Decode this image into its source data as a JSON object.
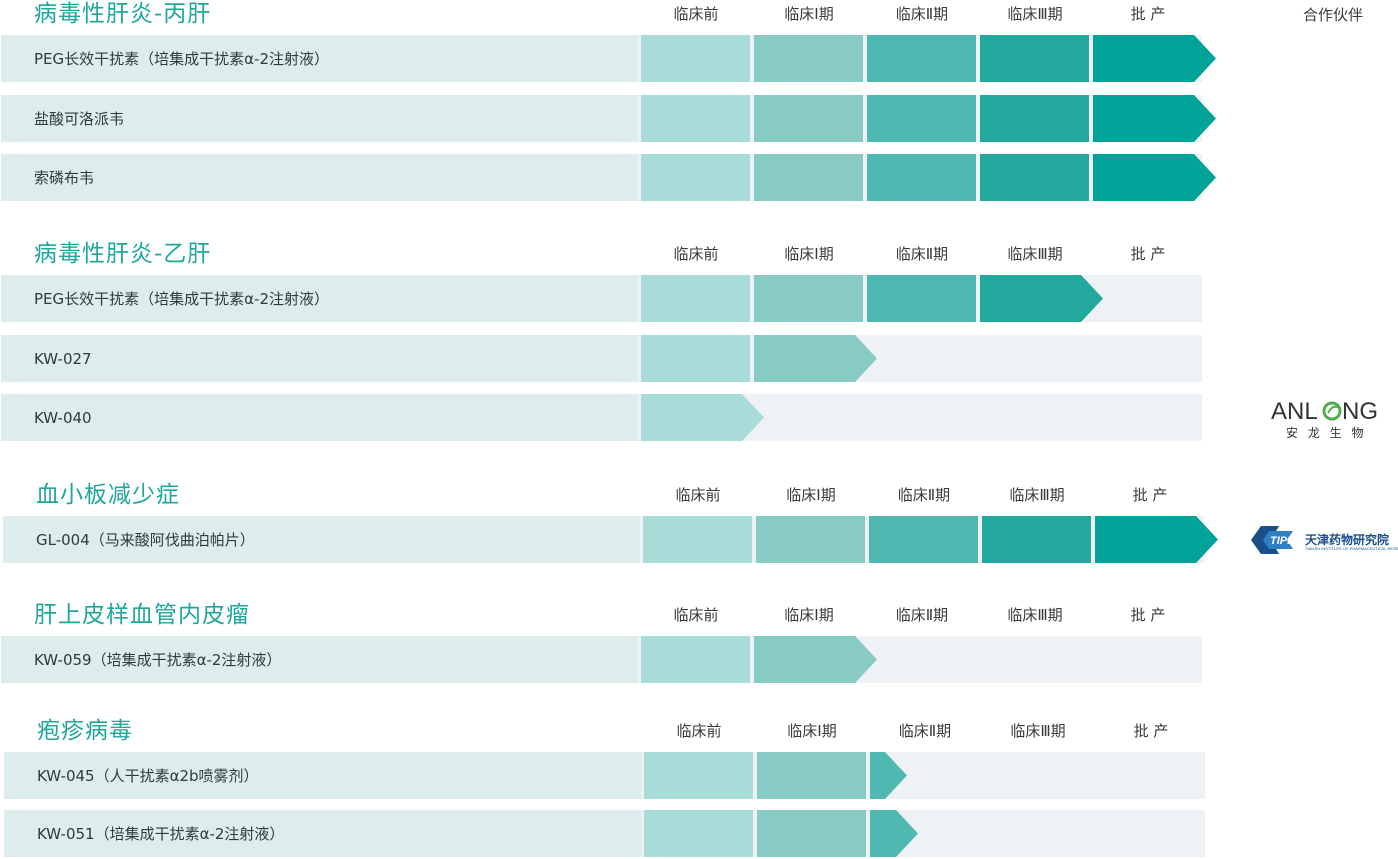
{
  "partner_header": "合作伙伴",
  "colors": {
    "row_bg": "#eef2f4",
    "name_bg": "#dcedec",
    "stage_colors": [
      "#a9dcd8",
      "#87cbc4",
      "#4fb8b0",
      "#22a89c",
      "#00a397"
    ],
    "title": "#1fa79b"
  },
  "partners": {
    "anlong": {
      "brand": "ANLONG",
      "sub": "安 龙 生 物"
    },
    "tipr": {
      "brand": "TIPR",
      "name": "天津药物研究院",
      "sub": "TIANJIN INSTITUTE OF PHARMACEUTICAL RESEARCH"
    }
  },
  "chart_data": {
    "type": "table",
    "phases": [
      "临床前",
      "临床Ⅰ期",
      "临床Ⅱ期",
      "临床Ⅲ期",
      "批  产"
    ],
    "sections": [
      {
        "title": "病毒性肝炎-丙肝",
        "items": [
          {
            "name": "PEG长效干扰素（培集成干扰素α-2注射液）",
            "stage": 5
          },
          {
            "name": "盐酸可洛派韦",
            "stage": 5
          },
          {
            "name": "索磷布韦",
            "stage": 5
          }
        ]
      },
      {
        "title": "病毒性肝炎-乙肝",
        "items": [
          {
            "name": "PEG长效干扰素（培集成干扰素α-2注射液）",
            "stage": 4
          },
          {
            "name": "KW-027",
            "stage": 2
          },
          {
            "name": "KW-040",
            "stage": 1
          }
        ]
      },
      {
        "title": "血小板减少症",
        "items": [
          {
            "name": "GL-004（马来酸阿伐曲泊帕片）",
            "stage": 5
          }
        ]
      },
      {
        "title": "肝上皮样血管内皮瘤",
        "items": [
          {
            "name": "KW-059（培集成干扰素α-2注射液）",
            "stage": 2
          }
        ]
      },
      {
        "title": "疱疹病毒",
        "items": [
          {
            "name": "KW-045（人干扰素α2b喷雾剂）",
            "stage": 2.3
          },
          {
            "name": "KW-051（培集成干扰素α-2注射液）",
            "stage": 2.4
          }
        ]
      }
    ]
  }
}
